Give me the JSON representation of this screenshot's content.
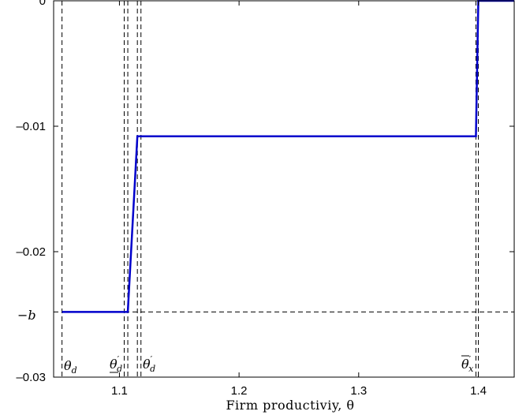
{
  "chart_data": {
    "type": "line",
    "title": "",
    "xlabel": "Firm productiviy, θ",
    "ylabel": "",
    "xlim": [
      1.045,
      1.43
    ],
    "ylim": [
      -0.03,
      0.0
    ],
    "grid": false,
    "x_ticks": [
      1.1,
      1.2,
      1.3,
      1.4
    ],
    "x_tick_labels": [
      "1.1",
      "1.2",
      "1.3",
      "1.4"
    ],
    "y_ticks": [
      0,
      -0.01,
      -0.02,
      -0.03
    ],
    "y_tick_labels": [
      "0",
      "–0.01",
      "–0.02",
      "–0.03"
    ],
    "series": [
      {
        "color": "#0000cc",
        "x": [
          1.052,
          1.107,
          1.115,
          1.398,
          1.4,
          1.43
        ],
        "y": [
          -0.0248,
          -0.0248,
          -0.0108,
          -0.0108,
          0.0,
          0.0
        ]
      }
    ],
    "hlines": [
      {
        "y": -0.0248,
        "label": "−b",
        "style": "dashed"
      },
      {
        "y": 0.0,
        "style": "solid"
      }
    ],
    "vlines": [
      {
        "x": 1.052,
        "label": "θd",
        "style": "dashed"
      },
      {
        "x": 1.104,
        "style": "dashed"
      },
      {
        "x": 1.107,
        "label": "θ′d (underlined)",
        "style": "dashed"
      },
      {
        "x": 1.115,
        "style": "dashed"
      },
      {
        "x": 1.118,
        "label": "θ′d",
        "style": "dashed"
      },
      {
        "x": 1.398,
        "label": "θ̄′x",
        "style": "dashed"
      },
      {
        "x": 1.4,
        "style": "dashed"
      }
    ]
  }
}
